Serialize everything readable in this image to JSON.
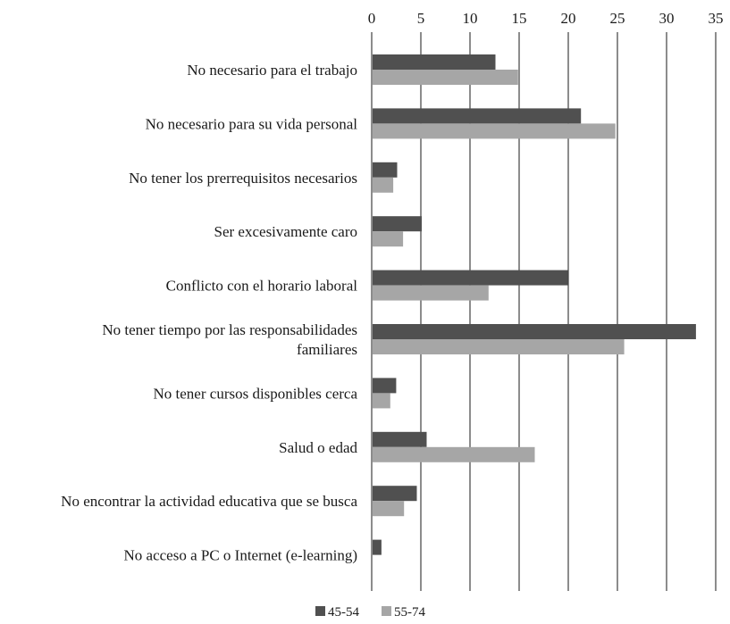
{
  "chart_data": {
    "type": "bar",
    "orientation": "horizontal",
    "categories": [
      [
        "No necesario para el trabajo"
      ],
      [
        "No necesario para su vida personal"
      ],
      [
        "No tener los prerrequisitos necesarios"
      ],
      [
        "Ser excesivamente caro"
      ],
      [
        "Conflicto con el horario laboral"
      ],
      [
        "No tener tiempo por las responsabilidades",
        "familiares"
      ],
      [
        "No tener cursos disponibles cerca"
      ],
      [
        "Salud o edad"
      ],
      [
        "No encontrar la actividad educativa que se busca"
      ],
      [
        "No acceso a PC o Internet (e-learning)"
      ]
    ],
    "series": [
      {
        "name": "45-54",
        "color": "#505050",
        "values": [
          12.5,
          21.2,
          2.5,
          5.0,
          19.9,
          32.9,
          2.4,
          5.5,
          4.5,
          0.9
        ]
      },
      {
        "name": "55-74",
        "color": "#a6a6a6",
        "values": [
          14.8,
          24.7,
          2.1,
          3.1,
          11.8,
          25.6,
          1.8,
          16.5,
          3.2,
          0.0
        ]
      }
    ],
    "xaxis": {
      "position": "top",
      "range": [
        0,
        35
      ],
      "ticks": [
        0,
        5,
        10,
        15,
        20,
        25,
        30,
        35
      ],
      "tick_labels": [
        "0",
        "5",
        "10",
        "15",
        "20",
        "25",
        "30",
        "35"
      ]
    },
    "grid": "vertical",
    "legend": "bottom",
    "title": "",
    "xlabel": "",
    "ylabel": ""
  }
}
